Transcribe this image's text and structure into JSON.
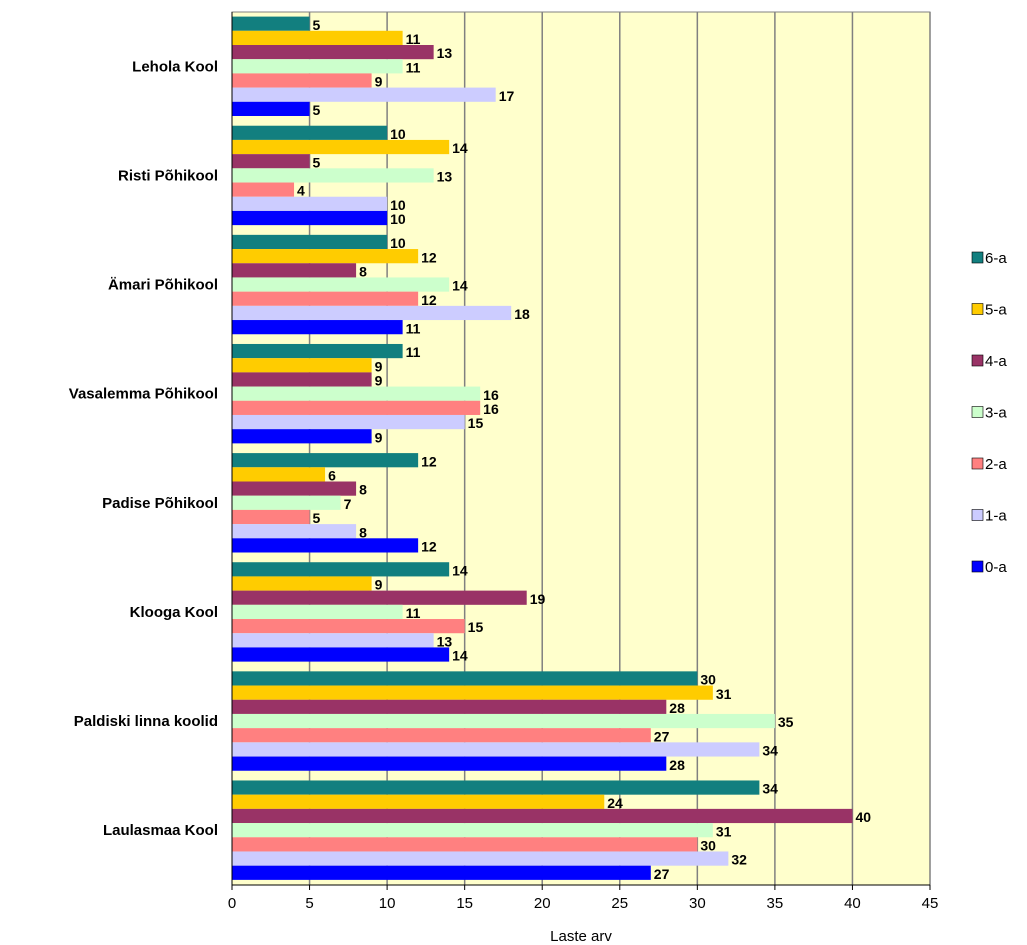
{
  "chart_data": {
    "type": "bar",
    "orientation": "horizontal",
    "categories": [
      "Lehola Kool",
      "Risti Põhikool",
      "Ämari Põhikool",
      "Vasalemma Põhikool",
      "Padise Põhikool",
      "Klooga Kool",
      "Paldiski linna koolid",
      "Laulasmaa Kool"
    ],
    "series": [
      {
        "name": "6-a",
        "color": "#127F7F",
        "values": [
          5,
          10,
          10,
          11,
          12,
          14,
          30,
          34
        ]
      },
      {
        "name": "5-a",
        "color": "#FFCC00",
        "values": [
          11,
          14,
          12,
          9,
          6,
          9,
          31,
          24
        ]
      },
      {
        "name": "4-a",
        "color": "#993366",
        "values": [
          13,
          5,
          8,
          9,
          8,
          19,
          28,
          40
        ]
      },
      {
        "name": "3-a",
        "color": "#CCFFCC",
        "values": [
          11,
          13,
          14,
          16,
          7,
          11,
          35,
          31
        ]
      },
      {
        "name": "2-a",
        "color": "#FF8080",
        "values": [
          9,
          4,
          12,
          16,
          5,
          15,
          27,
          30
        ]
      },
      {
        "name": "1-a",
        "color": "#CCCCFF",
        "values": [
          17,
          10,
          18,
          15,
          8,
          13,
          34,
          32
        ]
      },
      {
        "name": "0-a",
        "color": "#0000FF",
        "values": [
          5,
          10,
          11,
          9,
          12,
          14,
          28,
          27
        ]
      }
    ],
    "xlabel": "Laste arv",
    "ylabel": "",
    "xlim": [
      0,
      45
    ],
    "xticks": [
      0,
      5,
      10,
      15,
      20,
      25,
      30,
      35,
      40,
      45
    ],
    "grid": "vertical",
    "plot_background": "#FFFFCC",
    "legend_placement": "right",
    "legend_order": [
      "6-a",
      "5-a",
      "4-a",
      "3-a",
      "2-a",
      "1-a",
      "0-a"
    ]
  }
}
